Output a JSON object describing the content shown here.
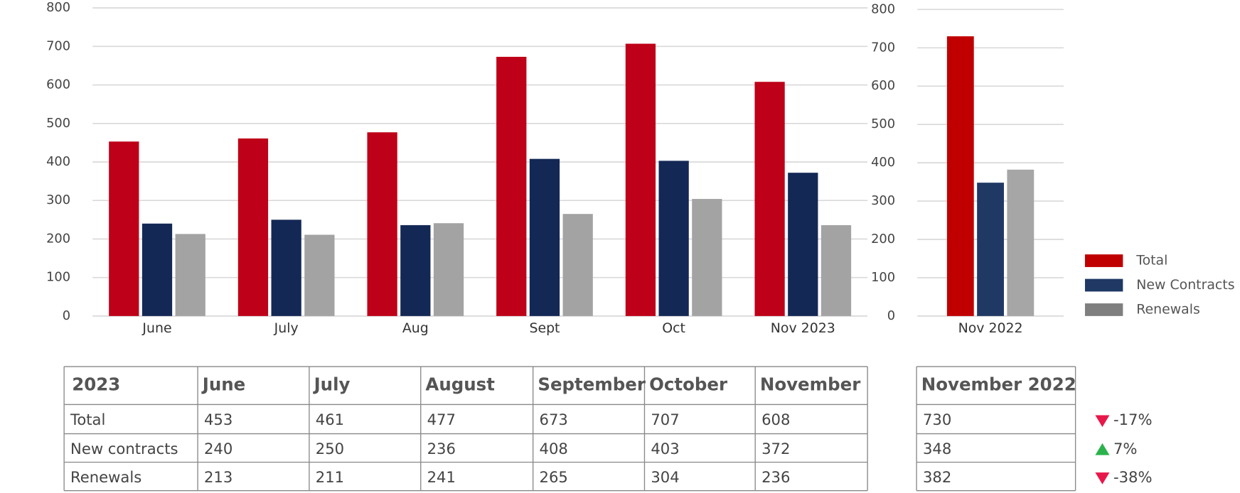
{
  "chart_data": [
    {
      "type": "bar",
      "categories": [
        "June",
        "July",
        "Aug",
        "Sept",
        "Oct",
        "Nov 2023"
      ],
      "series": [
        {
          "name": "Total",
          "color": "#be0018",
          "values": [
            453,
            461,
            477,
            673,
            707,
            608
          ]
        },
        {
          "name": "New Contracts",
          "color": "#142856",
          "values": [
            240,
            250,
            236,
            408,
            403,
            372
          ]
        },
        {
          "name": "Renewals",
          "color": "#a3a3a3",
          "values": [
            213,
            211,
            241,
            265,
            304,
            236
          ]
        }
      ],
      "ylim": [
        0,
        800
      ],
      "yticks": [
        0,
        100,
        200,
        300,
        400,
        500,
        600,
        700,
        800
      ],
      "grid": true
    },
    {
      "type": "bar",
      "categories": [
        "Nov 2022"
      ],
      "series": [
        {
          "name": "Total",
          "color": "#c00000",
          "values": [
            730
          ]
        },
        {
          "name": "New Contracts",
          "color": "#203864",
          "values": [
            348
          ]
        },
        {
          "name": "Renewals",
          "color": "#a6a6a6",
          "values": [
            382
          ]
        }
      ],
      "ylim": [
        0,
        800
      ],
      "yticks": [
        0,
        100,
        200,
        300,
        400,
        500,
        600,
        700,
        800
      ],
      "grid": true,
      "legend": "right",
      "legend_colors": [
        "#c00000",
        "#1f3864",
        "#7f7f7f"
      ]
    }
  ],
  "table": {
    "header": [
      "2023",
      "June",
      "July",
      "August",
      "September",
      "October",
      "November"
    ],
    "rows": [
      [
        "Total",
        "453",
        "461",
        "477",
        "673",
        "707",
        "608"
      ],
      [
        "New contracts",
        "240",
        "250",
        "236",
        "408",
        "403",
        "372"
      ],
      [
        "Renewals",
        "213",
        "211",
        "241",
        "265",
        "304",
        "236"
      ]
    ]
  },
  "table_2022": {
    "header": "November 2022",
    "rows": [
      "730",
      "348",
      "382"
    ],
    "changes": [
      {
        "text": "-17%",
        "direction": "down"
      },
      {
        "text": "7%",
        "direction": "up"
      },
      {
        "text": "-38%",
        "direction": "down"
      }
    ]
  }
}
